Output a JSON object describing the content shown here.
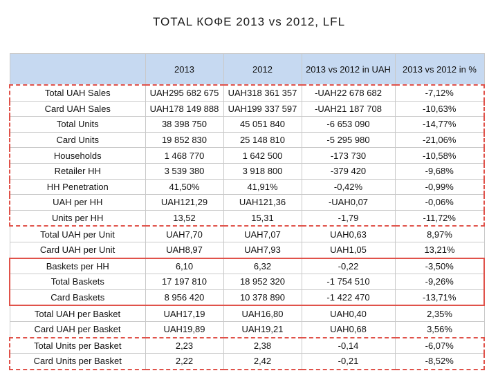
{
  "title": "TOTAL КОФЕ 2013 vs 2012, LFL",
  "table": {
    "headers": [
      "",
      "2013",
      "2012",
      "2013 vs 2012 in UAH",
      "2013 vs 2012 in %"
    ],
    "rows": [
      [
        "Total UAH Sales",
        "UAH295 682 675",
        "UAH318 361 357",
        "-UAH22 678 682",
        "-7,12%"
      ],
      [
        "Card UAH Sales",
        "UAH178 149 888",
        "UAH199 337 597",
        "-UAH21 187 708",
        "-10,63%"
      ],
      [
        "Total Units",
        "38 398 750",
        "45 051 840",
        "-6 653 090",
        "-14,77%"
      ],
      [
        "Card Units",
        "19 852 830",
        "25 148 810",
        "-5 295 980",
        "-21,06%"
      ],
      [
        "Households",
        "1 468 770",
        "1 642 500",
        "-173 730",
        "-10,58%"
      ],
      [
        "Retailer HH",
        "3 539 380",
        "3 918 800",
        "-379 420",
        "-9,68%"
      ],
      [
        "HH Penetration",
        "41,50%",
        "41,91%",
        "-0,42%",
        "-0,99%"
      ],
      [
        "UAH per HH",
        "UAH121,29",
        "UAH121,36",
        "-UAH0,07",
        "-0,06%"
      ],
      [
        "Units per HH",
        "13,52",
        "15,31",
        "-1,79",
        "-11,72%"
      ],
      [
        "Total UAH per Unit",
        "UAH7,70",
        "UAH7,07",
        "UAH0,63",
        "8,97%"
      ],
      [
        "Card UAH per Unit",
        "UAH8,97",
        "UAH7,93",
        "UAH1,05",
        "13,21%"
      ],
      [
        "Baskets per HH",
        "6,10",
        "6,32",
        "-0,22",
        "-3,50%"
      ],
      [
        "Total Baskets",
        "17 197 810",
        "18 952 320",
        "-1 754 510",
        "-9,26%"
      ],
      [
        "Card Baskets",
        "8 956 420",
        "10 378 890",
        "-1 422 470",
        "-13,71%"
      ],
      [
        "Total UAH per Basket",
        "UAH17,19",
        "UAH16,80",
        "UAH0,40",
        "2,35%"
      ],
      [
        "Card UAH per Basket",
        "UAH19,89",
        "UAH19,21",
        "UAH0,68",
        "3,56%"
      ],
      [
        "Total Units per Basket",
        "2,23",
        "2,38",
        "-0,14",
        "-6,07%"
      ],
      [
        "Card Units per Basket",
        "2,22",
        "2,42",
        "-0,21",
        "-8,52%"
      ]
    ]
  },
  "colors": {
    "header_bg": "#c6d9f1",
    "highlight_border": "#e0524a"
  }
}
